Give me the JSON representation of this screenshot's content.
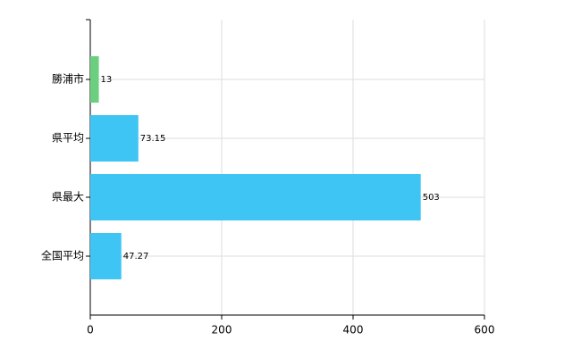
{
  "chart_data": {
    "type": "bar",
    "orientation": "horizontal",
    "categories": [
      "勝浦市",
      "県平均",
      "県最大",
      "全国平均"
    ],
    "values": [
      13,
      73.15,
      503,
      47.27
    ],
    "colors": [
      "#6ccf7f",
      "#3ec5f4",
      "#3ec5f4",
      "#3ec5f4"
    ],
    "xlim": [
      0,
      600
    ],
    "xticks": [
      0,
      200,
      400,
      600
    ],
    "grid": true
  }
}
